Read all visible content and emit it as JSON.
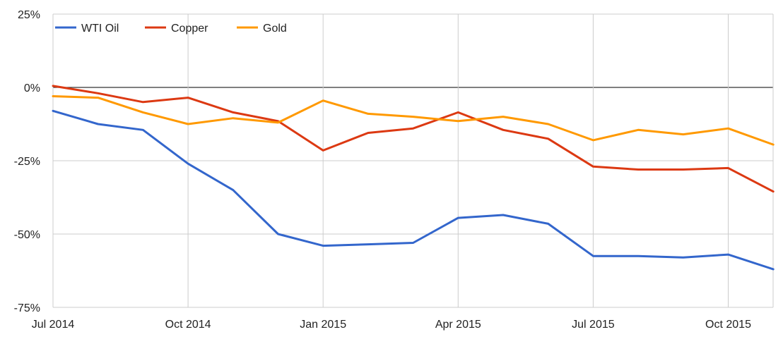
{
  "chart_data": {
    "type": "line",
    "title": "",
    "xlabel": "",
    "ylabel": "",
    "x": [
      "Jul 2014",
      "Aug 2014",
      "Sep 2014",
      "Oct 2014",
      "Nov 2014",
      "Dec 2014",
      "Jan 2015",
      "Feb 2015",
      "Mar 2015",
      "Apr 2015",
      "May 2015",
      "Jun 2015",
      "Jul 2015",
      "Aug 2015",
      "Sep 2015",
      "Oct 2015",
      "Nov 2015"
    ],
    "x_tick_labels": [
      "Jul 2014",
      "Oct 2014",
      "Jan 2015",
      "Apr 2015",
      "Jul 2015",
      "Oct 2015"
    ],
    "ylim": [
      -75,
      25
    ],
    "y_ticks": [
      25,
      0,
      -25,
      -50,
      -75
    ],
    "y_tick_labels": [
      "25%",
      "0%",
      "-25%",
      "-50%",
      "-75%"
    ],
    "grid": true,
    "legend": "top-left",
    "series": [
      {
        "name": "WTI Oil",
        "color": "#3366cc",
        "values": [
          -8,
          -12.5,
          -14.5,
          -26,
          -35,
          -50,
          -54,
          -53.5,
          -53,
          -44.5,
          -43.5,
          -46.5,
          -57.5,
          -57.5,
          -58,
          -57,
          -62
        ]
      },
      {
        "name": "Copper",
        "color": "#dc3912",
        "values": [
          0.5,
          -2,
          -5,
          -3.5,
          -8.5,
          -11.5,
          -21.5,
          -15.5,
          -14,
          -8.5,
          -14.5,
          -17.5,
          -27,
          -28,
          -28,
          -27.5,
          -35.5
        ]
      },
      {
        "name": "Gold",
        "color": "#ff9900",
        "values": [
          -3,
          -3.5,
          -8.5,
          -12.5,
          -10.5,
          -12,
          -4.5,
          -9,
          -10,
          -11.5,
          -10,
          -12.5,
          -18,
          -14.5,
          -16,
          -14,
          -19.5
        ]
      }
    ]
  }
}
